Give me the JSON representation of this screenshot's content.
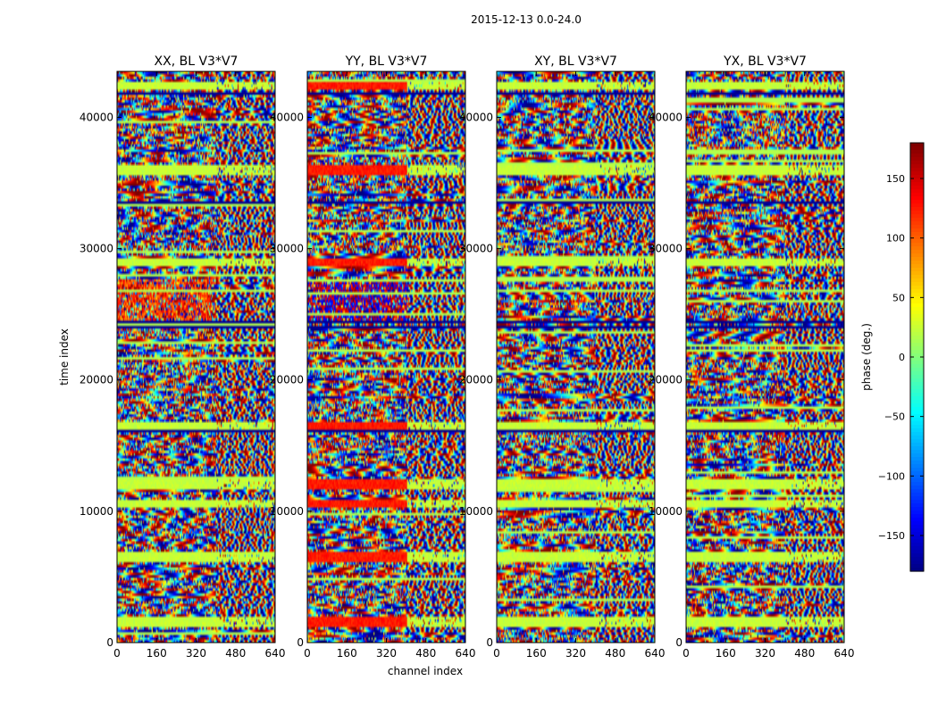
{
  "chart_data": {
    "type": "heatmap",
    "suptitle": "2015-12-13 0.0-24.0",
    "panels": [
      {
        "title": "XX, BL V3*V7",
        "seed": 11,
        "profile": "xx"
      },
      {
        "title": "YY, BL V3*V7",
        "seed": 29,
        "profile": "yy"
      },
      {
        "title": "XY, BL V3*V7",
        "seed": 47,
        "profile": "xy"
      },
      {
        "title": "YX, BL V3*V7",
        "seed": 83,
        "profile": "yx"
      }
    ],
    "xlabel": "channel index",
    "ylabel": "time index",
    "xlim": [
      0,
      640
    ],
    "ylim": [
      0,
      43500
    ],
    "xticks": [
      0,
      160,
      320,
      480,
      640
    ],
    "yticks": [
      0,
      10000,
      20000,
      30000,
      40000
    ],
    "colorbar": {
      "label": "phase (deg.)",
      "range": [
        -180,
        180
      ],
      "ticks": [
        150,
        100,
        50,
        0,
        -50,
        -100,
        -150
      ],
      "ticklabels": [
        "150",
        "100",
        "50",
        "0",
        "−50",
        "−100",
        "−150"
      ],
      "colormap": "jet"
    },
    "flag_rows": [
      1500,
      6500,
      10500,
      12000,
      16500,
      29000,
      36000,
      42500
    ],
    "blank_rows": [
      16000,
      24000,
      24500,
      28500,
      33500,
      42000
    ]
  }
}
